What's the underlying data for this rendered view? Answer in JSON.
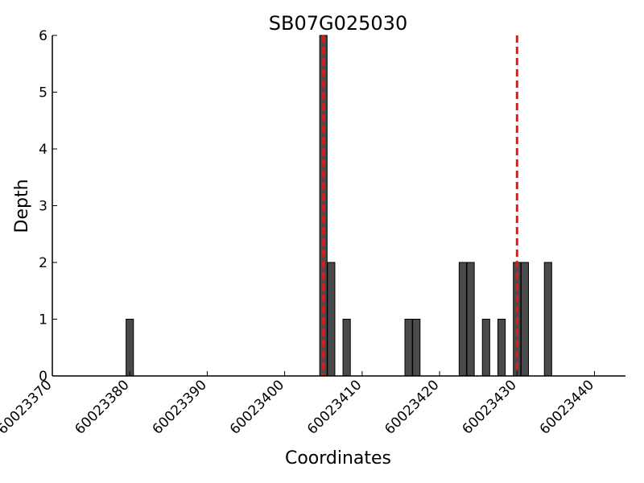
{
  "chart_data": {
    "type": "bar",
    "title": "SB07G025030",
    "xlabel": "Coordinates",
    "ylabel": "Depth",
    "xlim": [
      60023370,
      60023444
    ],
    "ylim": [
      0,
      6
    ],
    "xticks": [
      60023370,
      60023380,
      60023390,
      60023400,
      60023410,
      60023420,
      60023430,
      60023440
    ],
    "yticks": [
      0,
      1,
      2,
      3,
      4,
      5,
      6
    ],
    "grid": false,
    "bar_color": "#4a4a4a",
    "bars": [
      {
        "x": 60023380,
        "value": 1
      },
      {
        "x": 60023405,
        "value": 6
      },
      {
        "x": 60023406,
        "value": 2
      },
      {
        "x": 60023408,
        "value": 1
      },
      {
        "x": 60023416,
        "value": 1
      },
      {
        "x": 60023417,
        "value": 1
      },
      {
        "x": 60023423,
        "value": 2
      },
      {
        "x": 60023424,
        "value": 2
      },
      {
        "x": 60023426,
        "value": 1
      },
      {
        "x": 60023428,
        "value": 1
      },
      {
        "x": 60023430,
        "value": 2
      },
      {
        "x": 60023431,
        "value": 2
      },
      {
        "x": 60023434,
        "value": 2
      }
    ],
    "reference_lines": {
      "color": "#e31a1c",
      "style": "dashed",
      "x": [
        60023405,
        60023430
      ]
    }
  }
}
